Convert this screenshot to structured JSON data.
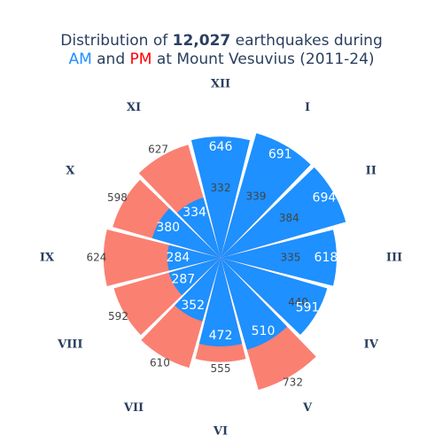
{
  "chart_data": {
    "type": "barpolar",
    "title": {
      "part1": "Distribution of ",
      "total": "12,027",
      "part2": " earthquakes during",
      "am": "AM",
      "and": " and ",
      "pm": "PM",
      "part3": " at Mount Vesuvius (2011-24)"
    },
    "categories": [
      "XII",
      "I",
      "II",
      "III",
      "IV",
      "V",
      "VI",
      "VII",
      "VIII",
      "IX",
      "X",
      "XI"
    ],
    "series": [
      {
        "name": "PM",
        "color": "#fa8072",
        "values": [
          332,
          339,
          384,
          335,
          440,
          732,
          555,
          610,
          592,
          624,
          598,
          627
        ]
      },
      {
        "name": "AM",
        "color": "#1e90ff",
        "values": [
          646,
          691,
          694,
          618,
          591,
          510,
          472,
          352,
          287,
          284,
          380,
          334
        ]
      }
    ],
    "colors": {
      "am_title": "#1e90ff",
      "pm_title": "#ff0000",
      "title_text": "#2a3f5f"
    },
    "direction": "clockwise",
    "rotation": "XII at top",
    "radial_axis_visible": false,
    "legend": "none",
    "grid": false
  }
}
